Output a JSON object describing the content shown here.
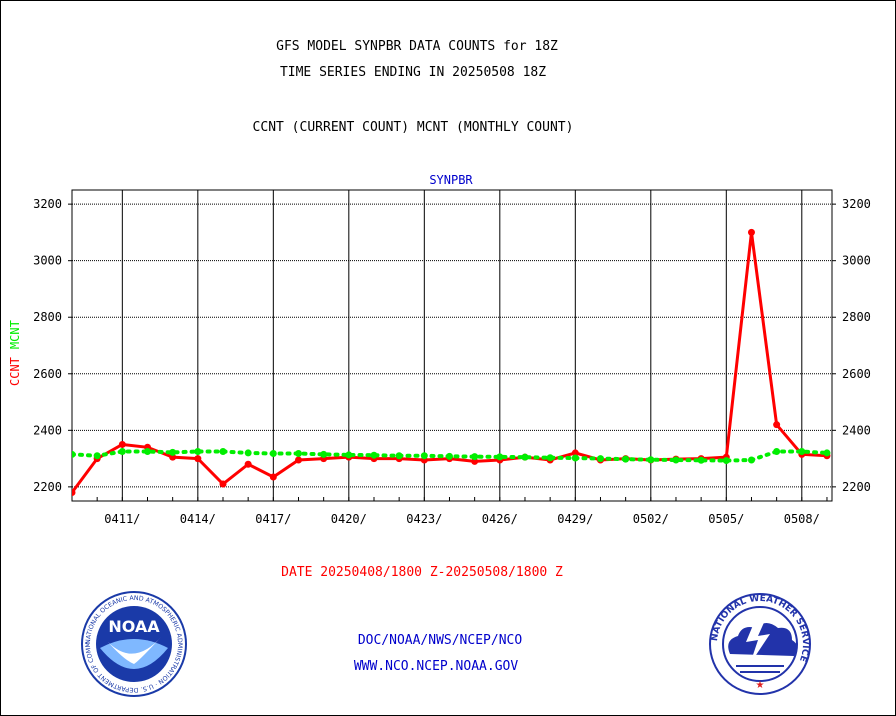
{
  "header": {
    "title_line1": "GFS MODEL SYNPBR DATA COUNTS for 18Z",
    "title_line2": "TIME SERIES ENDING IN 20250508 18Z",
    "legend_line": "CCNT (CURRENT COUNT) MCNT (MONTHLY COUNT)"
  },
  "footer": {
    "date_range": "DATE 20250408/1800 Z-20250508/1800 Z",
    "line1": "DOC/NOAA/NWS/NCEP/NCO",
    "line2": "WWW.NCO.NCEP.NOAA.GOV"
  },
  "logos": {
    "left": "noaa-logo",
    "left_text": "NOAA",
    "left_ring": "NATIONAL OCEANIC AND ATMOSPHERIC ADMINISTRATION · U.S. DEPARTMENT OF COMMERCE",
    "right": "nws-logo",
    "right_ring": "NATIONAL WEATHER SERVICE"
  },
  "colors": {
    "ccnt": "#ff0000",
    "mcnt": "#00ee00",
    "text_blue": "#0000cc",
    "date_red": "#ff0000",
    "noaa_blue": "#1a3aa8",
    "nws_blue": "#2233aa"
  },
  "chart_data": {
    "type": "line",
    "title": "SYNPBR",
    "ylabel_parts": [
      "CCNT",
      "MCNT"
    ],
    "ylim": [
      2150,
      3250
    ],
    "yticks": [
      2200,
      2400,
      2600,
      2800,
      3000,
      3200
    ],
    "xlim": [
      0,
      30.2
    ],
    "xticks": [
      {
        "x": 2,
        "label": "0411/"
      },
      {
        "x": 5,
        "label": "0414/"
      },
      {
        "x": 8,
        "label": "0417/"
      },
      {
        "x": 11,
        "label": "0420/"
      },
      {
        "x": 14,
        "label": "0423/"
      },
      {
        "x": 17,
        "label": "0426/"
      },
      {
        "x": 20,
        "label": "0429/"
      },
      {
        "x": 23,
        "label": "0502/"
      },
      {
        "x": 26,
        "label": "0505/"
      },
      {
        "x": 29,
        "label": "0508/"
      }
    ],
    "grid": true,
    "series": [
      {
        "name": "CCNT",
        "color": "#ff0000",
        "style": "solid",
        "x": [
          0,
          1,
          2,
          3,
          4,
          5,
          6,
          7,
          8,
          9,
          10,
          11,
          12,
          13,
          14,
          15,
          16,
          17,
          18,
          19,
          20,
          21,
          22,
          23,
          24,
          25,
          26,
          27,
          28,
          29,
          30
        ],
        "y": [
          2180,
          2300,
          2350,
          2340,
          2305,
          2300,
          2210,
          2280,
          2235,
          2295,
          2300,
          2305,
          2300,
          2300,
          2295,
          2300,
          2290,
          2295,
          2305,
          2295,
          2320,
          2295,
          2300,
          2295,
          2298,
          2300,
          2305,
          3100,
          2420,
          2315,
          2310
        ]
      },
      {
        "name": "MCNT",
        "color": "#00ee00",
        "style": "dotted",
        "x": [
          0,
          1,
          2,
          3,
          4,
          5,
          6,
          7,
          8,
          9,
          10,
          11,
          12,
          13,
          14,
          15,
          16,
          17,
          18,
          19,
          20,
          21,
          22,
          23,
          24,
          25,
          26,
          27,
          28,
          29,
          30
        ],
        "y": [
          2315,
          2310,
          2325,
          2325,
          2322,
          2325,
          2325,
          2320,
          2318,
          2318,
          2315,
          2313,
          2312,
          2310,
          2310,
          2308,
          2307,
          2306,
          2305,
          2303,
          2302,
          2300,
          2298,
          2296,
          2295,
          2294,
          2293,
          2295,
          2325,
          2325,
          2320
        ]
      }
    ]
  }
}
